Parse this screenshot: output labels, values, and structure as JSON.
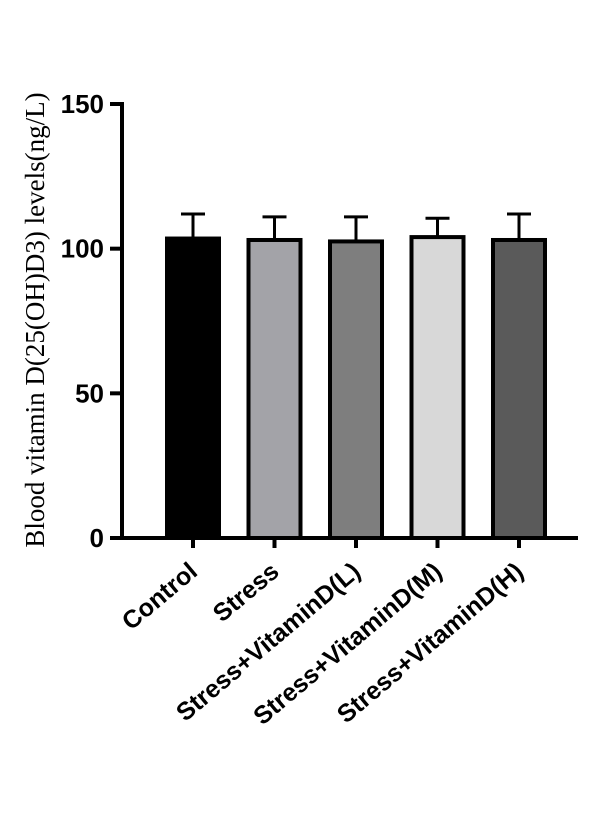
{
  "chart_data": {
    "type": "bar",
    "title": "",
    "xlabel": "",
    "ylabel": "Blood vitamin D(25(OH)D3) levels(ng/L)",
    "ylim": [
      0,
      150
    ],
    "yticks": [
      0,
      50,
      100,
      150
    ],
    "grid": false,
    "categories": [
      "Control",
      "Stress",
      "Stress+VitaminD(L)",
      "Stress+VitaminD(M)",
      "Stress+VitaminD(H)"
    ],
    "values": [
      103.5,
      103.0,
      102.5,
      104.0,
      103.0
    ],
    "errors": [
      8.5,
      8.0,
      8.5,
      6.5,
      9.0
    ],
    "colors": [
      "#000000",
      "#a3a3a8",
      "#7e7e7e",
      "#d8d8d8",
      "#5a5a5a"
    ]
  }
}
